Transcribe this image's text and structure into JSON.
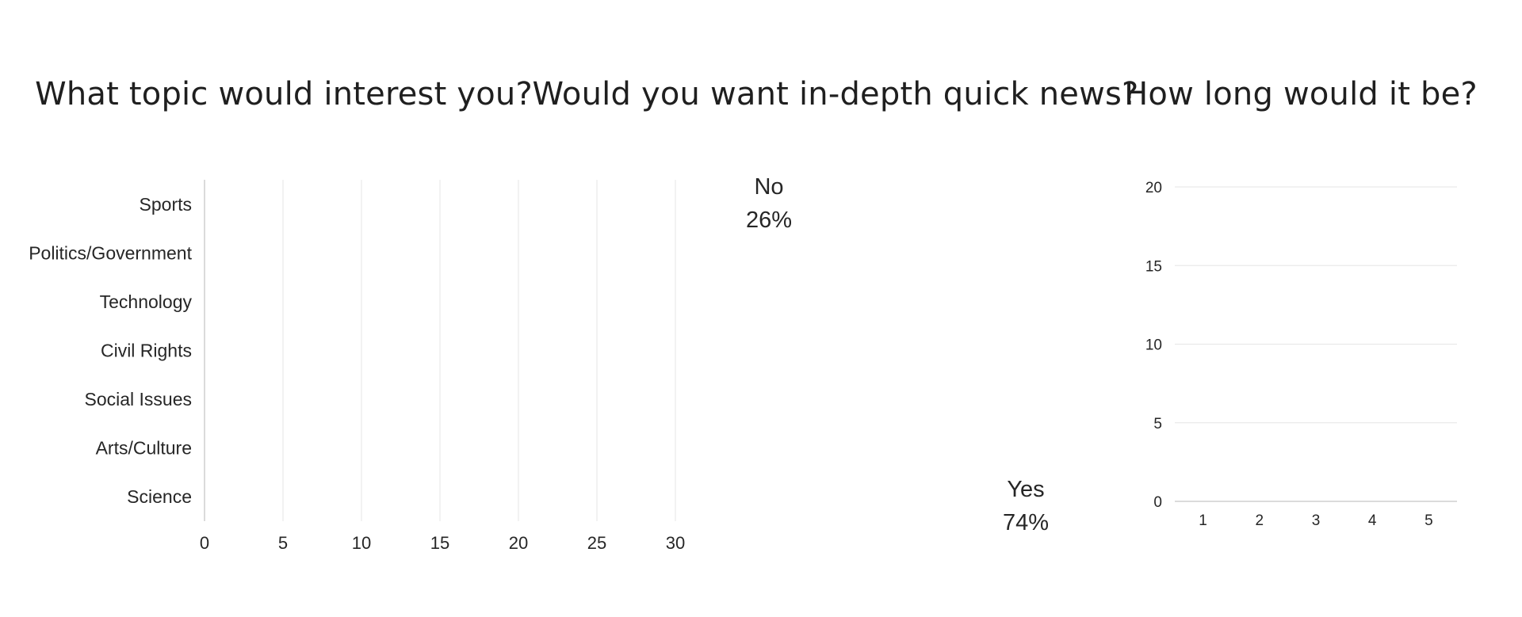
{
  "chart_data": [
    {
      "type": "bar",
      "orientation": "horizontal",
      "title": "What topic would interest you?",
      "categories": [
        "Sports",
        "Politics/Government",
        "Technology",
        "Civil Rights",
        "Social Issues",
        "Arts/Culture",
        "Science"
      ],
      "values": [
        0,
        0,
        0,
        0,
        0,
        0,
        0
      ],
      "xticks": [
        0,
        5,
        10,
        15,
        20,
        25,
        30
      ],
      "xlim": [
        0,
        30
      ],
      "grid": true
    },
    {
      "type": "pie",
      "title": "Would you want in-depth quick news?",
      "slices": [
        {
          "label": "No",
          "percent": "26%",
          "value": 26
        },
        {
          "label": "Yes",
          "percent": "74%",
          "value": 74
        }
      ]
    },
    {
      "type": "bar",
      "title": "How long would it be?",
      "categories": [
        "1",
        "2",
        "3",
        "4",
        "5"
      ],
      "values": [
        0,
        0,
        0,
        0,
        0
      ],
      "yticks": [
        0,
        5,
        10,
        15,
        20
      ],
      "ylim": [
        0,
        20
      ],
      "grid": true
    }
  ]
}
